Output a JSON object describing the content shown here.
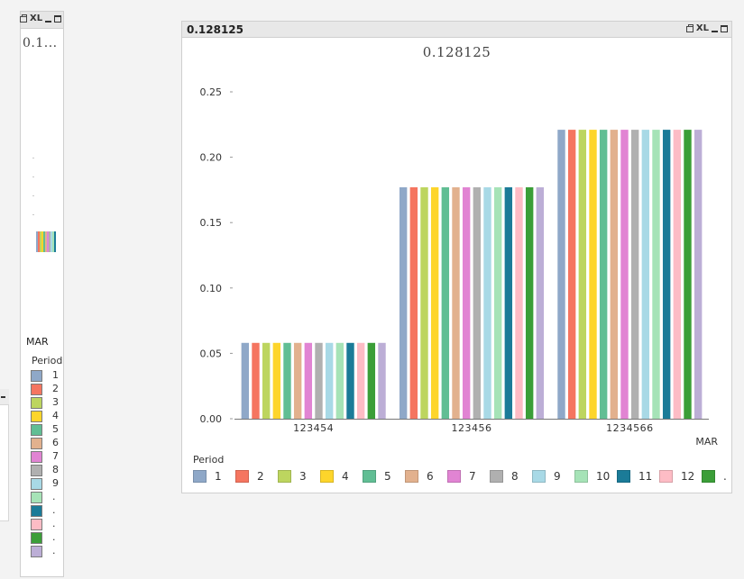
{
  "mini_chart": {
    "caption_icons": [
      "print-icon",
      "xl-icon",
      "minimize-icon",
      "maximize-icon"
    ],
    "caption_xl": "XL",
    "title": "0.1...",
    "x_label": "MAR",
    "legend_title": "Period",
    "legend_items": [
      "1",
      "2",
      "3",
      "4",
      "5",
      "6",
      "7",
      "8",
      "9",
      ".",
      ".",
      ".",
      ".",
      "."
    ]
  },
  "main_chart": {
    "caption": "0.128125",
    "caption_xl": "XL",
    "caption_icons": [
      "print-icon",
      "xl-icon",
      "minimize-icon",
      "maximize-icon"
    ],
    "legend_title": "Period"
  },
  "chart_data": {
    "type": "bar",
    "title": "0.128125",
    "xlabel": "MAR",
    "ylabel": "",
    "ylim": [
      0,
      0.25
    ],
    "yticks": [
      "0.00",
      "0.05",
      "0.10",
      "0.15",
      "0.20",
      "0.25"
    ],
    "grid": false,
    "legend_title": "Period",
    "legend_position": "bottom",
    "categories": [
      "123454",
      "123456",
      "1234566"
    ],
    "series": [
      {
        "name": "1",
        "color": "#8fa8c8",
        "values": [
          0.058,
          0.177,
          0.221
        ]
      },
      {
        "name": "2",
        "color": "#f57560",
        "values": [
          0.058,
          0.177,
          0.221
        ]
      },
      {
        "name": "3",
        "color": "#bdd55f",
        "values": [
          0.058,
          0.177,
          0.221
        ]
      },
      {
        "name": "4",
        "color": "#fdd52b",
        "values": [
          0.058,
          0.177,
          0.221
        ]
      },
      {
        "name": "5",
        "color": "#61be94",
        "values": [
          0.058,
          0.177,
          0.221
        ]
      },
      {
        "name": "6",
        "color": "#e2b18e",
        "values": [
          0.058,
          0.177,
          0.221
        ]
      },
      {
        "name": "7",
        "color": "#e184d3",
        "values": [
          0.058,
          0.177,
          0.221
        ]
      },
      {
        "name": "8",
        "color": "#b0b0b0",
        "values": [
          0.058,
          0.177,
          0.221
        ]
      },
      {
        "name": "9",
        "color": "#a8d9e6",
        "values": [
          0.058,
          0.177,
          0.221
        ]
      },
      {
        "name": "10",
        "color": "#a6e3b7",
        "values": [
          0.058,
          0.177,
          0.221
        ]
      },
      {
        "name": "11",
        "color": "#1b7b98",
        "values": [
          0.058,
          0.177,
          0.221
        ]
      },
      {
        "name": "12",
        "color": "#fdbcc5",
        "values": [
          0.058,
          0.177,
          0.221
        ]
      },
      {
        "name": ".",
        "color": "#3b9e38",
        "values": [
          0.058,
          0.177,
          0.221
        ]
      },
      {
        "name": "",
        "color": "#bcaed6",
        "values": [
          0.058,
          0.177,
          0.221
        ]
      }
    ]
  }
}
